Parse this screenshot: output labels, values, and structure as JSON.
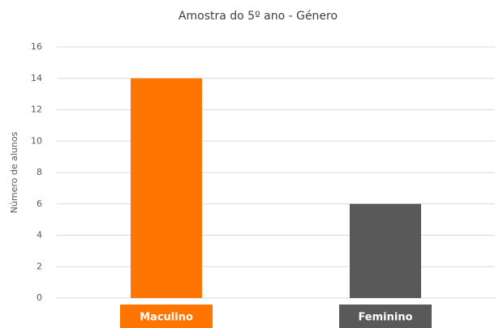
{
  "chart_data": {
    "type": "bar",
    "title": "Amostra do 5º ano - Género",
    "ylabel": "Número de alunos",
    "categories": [
      "Maculino",
      "Feminino"
    ],
    "values": [
      14,
      6
    ],
    "colors": [
      "#ff7500",
      "#595959"
    ],
    "ylim": [
      0,
      16
    ],
    "yticks": [
      0,
      2,
      4,
      6,
      8,
      10,
      12,
      14,
      16
    ],
    "grid": true
  }
}
